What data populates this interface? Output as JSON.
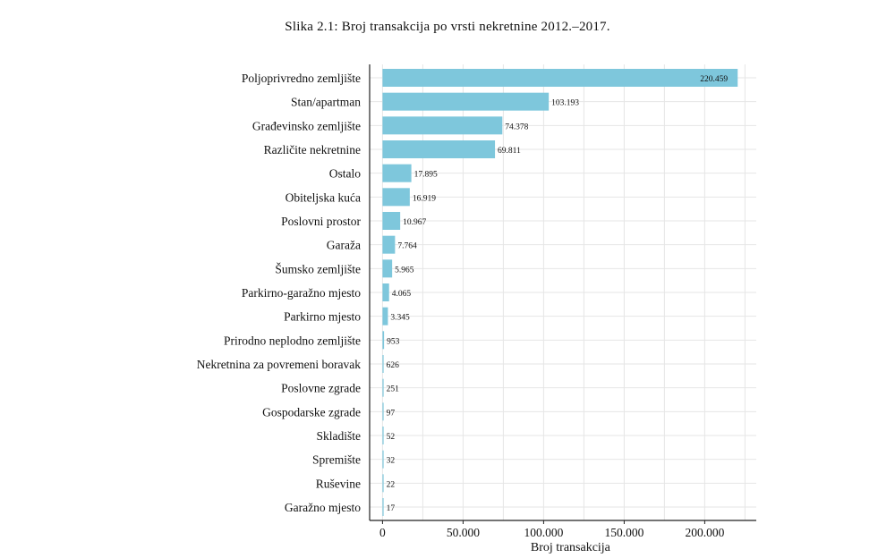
{
  "caption": "Slika 2.1: Broj transakcija po vrsti nekretnine 2012.–2017.",
  "colors": {
    "bar": "#7ec7dc",
    "grid": "#e6e6e6",
    "axis": "#222222"
  },
  "chart_data": {
    "type": "bar",
    "orientation": "horizontal",
    "title": "Slika 2.1: Broj transakcija po vrsti nekretnine 2012.–2017.",
    "xlabel": "Broj transakcija",
    "ylabel": "",
    "xlim": [
      -8000,
      232000
    ],
    "xticks": [
      0,
      50000,
      100000,
      150000,
      200000
    ],
    "xtick_labels": [
      "0",
      "50.000",
      "100.000",
      "150.000",
      "200.000"
    ],
    "grid": true,
    "categories": [
      "Poljoprivredno zemljište",
      "Stan/apartman",
      "Građevinsko zemljište",
      "Različite nekretnine",
      "Ostalo",
      "Obiteljska kuća",
      "Poslovni prostor",
      "Garaža",
      "Šumsko zemljište",
      "Parkirno-garažno mjesto",
      "Parkirno mjesto",
      "Prirodno neplodno zemljište",
      "Nekretnina za povremeni boravak",
      "Poslovne zgrade",
      "Gospodarske zgrade",
      "Skladište",
      "Spremište",
      "Ruševine",
      "Garažno mjesto"
    ],
    "values": [
      220459,
      103193,
      74378,
      69811,
      17895,
      16919,
      10967,
      7764,
      5965,
      4065,
      3345,
      953,
      626,
      251,
      97,
      52,
      32,
      22,
      17
    ],
    "value_labels": [
      "220.459",
      "103.193",
      "74.378",
      "69.811",
      "17.895",
      "16.919",
      "10.967",
      "7.764",
      "5.965",
      "4.065",
      "3.345",
      "953",
      "626",
      "251",
      "97",
      "52",
      "32",
      "22",
      "17"
    ]
  }
}
